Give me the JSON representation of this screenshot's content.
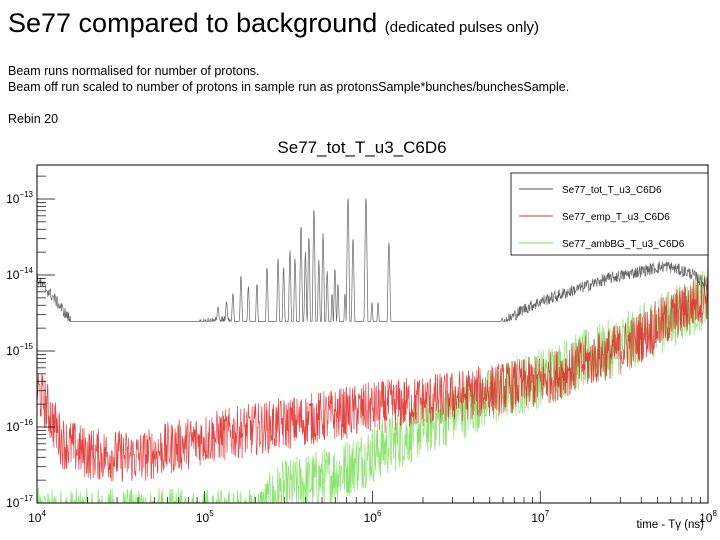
{
  "slide": {
    "title": "Se77 compared to background",
    "title_note": "(dedicated pulses only)",
    "lines": [
      "Beam runs normalised for number of protons.",
      "Beam off run scaled to number of protons in sample run as protonsSample*bunches/bunchesSample."
    ],
    "rebin": "Rebin 20"
  },
  "chart_data": {
    "type": "line",
    "title": "Se77_tot_T_u3_C6D6",
    "xlabel": "time - Tγ (ns)",
    "ylabel": "",
    "xscale": "log",
    "yscale": "log",
    "xlim": [
      10000,
      100000000
    ],
    "ylim": [
      1e-17,
      2.8e-13
    ],
    "x_ticks": [
      {
        "base": "10",
        "exp": "4",
        "value": 10000.0
      },
      {
        "base": "10",
        "exp": "5",
        "value": 100000.0
      },
      {
        "base": "10",
        "exp": "6",
        "value": 1000000.0
      },
      {
        "base": "10",
        "exp": "7",
        "value": 10000000.0
      },
      {
        "base": "10",
        "exp": "8",
        "value": 100000000.0
      }
    ],
    "y_ticks": [
      {
        "base": "10",
        "exp": "−13",
        "value": 1e-13
      },
      {
        "base": "10",
        "exp": "−14",
        "value": 1e-14
      },
      {
        "base": "10",
        "exp": "−15",
        "value": 1e-15
      },
      {
        "base": "10",
        "exp": "−16",
        "value": 1e-16
      },
      {
        "base": "10",
        "exp": "−17",
        "value": 1e-17
      }
    ],
    "legend_position": "top-right",
    "series": [
      {
        "name": "Se77_tot_T_u3_C6D6",
        "color": "#555555",
        "noise_decades": 0.08,
        "baseline_log10": [
          [
            4.0,
            -14.05
          ],
          [
            4.1,
            -14.3
          ],
          [
            4.2,
            -14.6
          ],
          [
            4.3,
            -15.0
          ],
          [
            4.32,
            -15.3
          ],
          [
            4.4,
            -15.0
          ],
          [
            4.5,
            -14.95
          ],
          [
            4.6,
            -14.9
          ],
          [
            4.7,
            -14.85
          ],
          [
            4.8,
            -14.75
          ],
          [
            4.9,
            -14.7
          ],
          [
            5.0,
            -14.65
          ],
          [
            5.1,
            -14.6
          ],
          [
            5.2,
            -14.7
          ],
          [
            5.3,
            -14.8
          ],
          [
            5.4,
            -14.9
          ],
          [
            5.5,
            -15.0
          ],
          [
            5.6,
            -15.1
          ],
          [
            5.7,
            -15.2
          ],
          [
            5.8,
            -15.25
          ],
          [
            5.9,
            -15.2
          ],
          [
            6.0,
            -15.15
          ],
          [
            6.1,
            -15.25
          ],
          [
            6.2,
            -15.3
          ],
          [
            6.3,
            -15.25
          ],
          [
            6.4,
            -15.1
          ],
          [
            6.5,
            -14.95
          ],
          [
            6.6,
            -14.85
          ],
          [
            6.7,
            -14.7
          ],
          [
            6.8,
            -14.6
          ],
          [
            6.9,
            -14.45
          ],
          [
            7.0,
            -14.35
          ],
          [
            7.2,
            -14.2
          ],
          [
            7.4,
            -14.05
          ],
          [
            7.6,
            -13.95
          ],
          [
            7.75,
            -13.88
          ],
          [
            7.9,
            -13.98
          ],
          [
            8.0,
            -14.15
          ]
        ],
        "peaks_log10": [
          [
            5.854,
            -12.97
          ],
          [
            5.961,
            -12.97
          ],
          [
            5.651,
            -13.12
          ],
          [
            5.574,
            -13.34
          ],
          [
            5.705,
            -13.45
          ],
          [
            5.884,
            -13.51
          ],
          [
            6.098,
            -13.57
          ],
          [
            5.621,
            -13.49
          ],
          [
            5.776,
            -13.91
          ],
          [
            5.794,
            -14.11
          ],
          [
            5.216,
            -14.0
          ],
          [
            5.437,
            -13.78
          ],
          [
            5.371,
            -13.89
          ],
          [
            5.508,
            -13.67
          ],
          [
            5.538,
            -13.78
          ],
          [
            5.168,
            -14.24
          ],
          [
            5.311,
            -14.11
          ],
          [
            5.997,
            -14.36
          ],
          [
            6.033,
            -14.36
          ],
          [
            5.759,
            -14.24
          ],
          [
            5.836,
            -14.24
          ],
          [
            5.079,
            -14.42
          ],
          [
            5.13,
            -14.35
          ],
          [
            5.26,
            -14.15
          ],
          [
            5.47,
            -13.9
          ],
          [
            5.6,
            -13.7
          ],
          [
            5.68,
            -13.8
          ],
          [
            5.73,
            -13.95
          ]
        ]
      },
      {
        "name": "Se77_emp_T_u3_C6D6",
        "color": "#e03030",
        "noise_decades": 0.35,
        "baseline_log10": [
          [
            4.0,
            -15.5
          ],
          [
            4.05,
            -15.7
          ],
          [
            4.15,
            -16.2
          ],
          [
            4.3,
            -16.35
          ],
          [
            4.6,
            -16.4
          ],
          [
            5.0,
            -16.15
          ],
          [
            5.5,
            -15.95
          ],
          [
            6.0,
            -15.75
          ],
          [
            6.5,
            -15.6
          ],
          [
            7.0,
            -15.4
          ],
          [
            7.5,
            -14.95
          ],
          [
            8.0,
            -14.25
          ]
        ],
        "peaks_log10": []
      },
      {
        "name": "Se77_ambBG_T_u3_C6D6",
        "color": "#7ee060",
        "noise_decades": 0.4,
        "baseline_log10": [
          [
            4.0,
            -17.2
          ],
          [
            5.3,
            -17.2
          ],
          [
            5.45,
            -16.85
          ],
          [
            5.8,
            -16.6
          ],
          [
            6.0,
            -16.35
          ],
          [
            6.3,
            -16.0
          ],
          [
            6.6,
            -15.7
          ],
          [
            7.0,
            -15.35
          ],
          [
            7.5,
            -14.9
          ],
          [
            8.0,
            -14.3
          ]
        ],
        "peaks_log10": []
      }
    ]
  }
}
